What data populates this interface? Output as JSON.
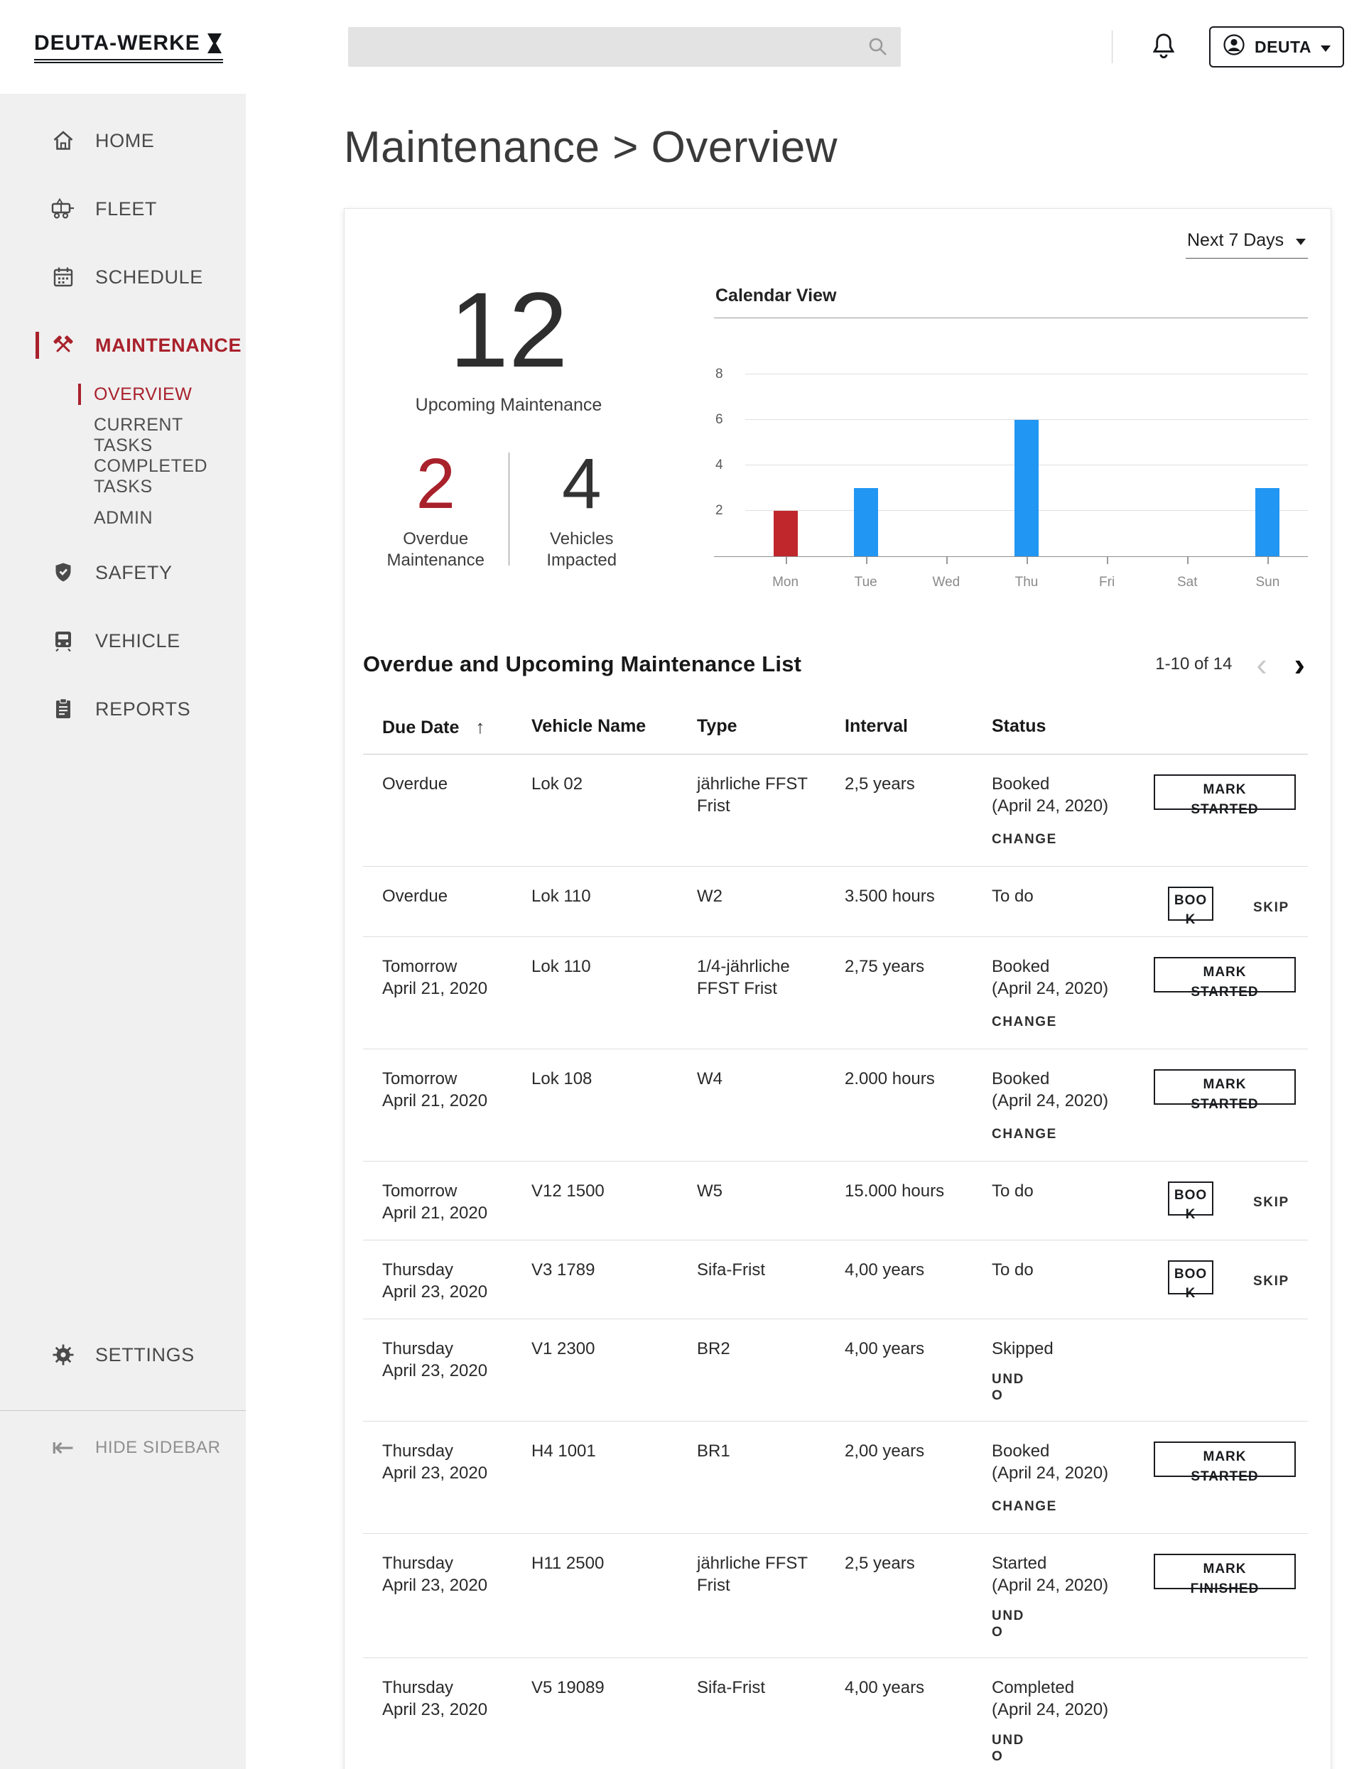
{
  "header": {
    "logo": {
      "text": "DEUTA-WERKE"
    },
    "search": {
      "placeholder": ""
    },
    "user": {
      "label": "DEUTA"
    }
  },
  "sidebar": {
    "items": [
      {
        "id": "home",
        "label": "HOME"
      },
      {
        "id": "fleet",
        "label": "FLEET"
      },
      {
        "id": "schedule",
        "label": "SCHEDULE"
      },
      {
        "id": "maintenance",
        "label": "MAINTENANCE",
        "active": true,
        "subitems": [
          {
            "label": "OVERVIEW",
            "active": true
          },
          {
            "label": "CURRENT TASKS"
          },
          {
            "label": "COMPLETED TASKS"
          },
          {
            "label": "ADMIN"
          }
        ]
      },
      {
        "id": "safety",
        "label": "SAFETY"
      },
      {
        "id": "vehicle",
        "label": "VEHICLE"
      },
      {
        "id": "reports",
        "label": "REPORTS"
      }
    ],
    "settings_label": "SETTINGS",
    "hide_sidebar_label": "HIDE SIDEBAR"
  },
  "page": {
    "title": "Maintenance > Overview"
  },
  "summary": {
    "range_selector_label": "Next 7 Days",
    "upcoming": {
      "value": "12",
      "label": "Upcoming Maintenance"
    },
    "overdue": {
      "value": "2",
      "label": "Overdue Maintenance"
    },
    "vehicles": {
      "value": "4",
      "label": "Vehicles Impacted"
    }
  },
  "chart_data": {
    "type": "bar",
    "title": "Calendar View",
    "categories": [
      "Mon",
      "Tue",
      "Wed",
      "Thu",
      "Fri",
      "Sat",
      "Sun"
    ],
    "values": [
      2,
      3,
      0,
      6,
      0,
      0,
      3
    ],
    "bar_colors": [
      "#c0272d",
      "#2196f3",
      "#2196f3",
      "#2196f3",
      "#2196f3",
      "#2196f3",
      "#2196f3"
    ],
    "yticks": [
      2,
      4,
      6,
      8
    ],
    "ylim": [
      0,
      9
    ],
    "grid": true,
    "xlabel": "",
    "ylabel": "",
    "legend": false
  },
  "list": {
    "title": "Overdue and Upcoming Maintenance List",
    "pagination": {
      "label": "1-10 of 14"
    },
    "columns": [
      "Due Date",
      "Vehicle Name",
      "Type",
      "Interval",
      "Status"
    ],
    "rows": [
      {
        "due_line1": "Overdue",
        "due_line2": "",
        "vehicle": "Lok 02",
        "type": "jährliche FFST Frist",
        "interval": "2,5 years",
        "status_line1": "Booked",
        "status_line2": "(April 24, 2020)",
        "status_link": "CHANGE",
        "action_button": "MARK STARTED",
        "action_link": ""
      },
      {
        "due_line1": "Overdue",
        "due_line2": "",
        "vehicle": "Lok 110",
        "type": "W2",
        "interval": "3.500 hours",
        "status_line1": "To do",
        "status_line2": "",
        "status_link": "",
        "action_button": "BOOK",
        "action_link": "SKIP"
      },
      {
        "due_line1": "Tomorrow",
        "due_line2": "April 21, 2020",
        "vehicle": "Lok 110",
        "type": "1/4-jährliche FFST Frist",
        "interval": "2,75 years",
        "status_line1": "Booked",
        "status_line2": "(April 24, 2020)",
        "status_link": "CHANGE",
        "action_button": "MARK STARTED",
        "action_link": ""
      },
      {
        "due_line1": "Tomorrow",
        "due_line2": "April 21, 2020",
        "vehicle": "Lok 108",
        "type": "W4",
        "interval": "2.000 hours",
        "status_line1": "Booked",
        "status_line2": "(April 24, 2020)",
        "status_link": "CHANGE",
        "action_button": "MARK STARTED",
        "action_link": ""
      },
      {
        "due_line1": "Tomorrow",
        "due_line2": "April 21, 2020",
        "vehicle": "V12 1500",
        "type": "W5",
        "interval": "15.000 hours",
        "status_line1": "To do",
        "status_line2": "",
        "status_link": "",
        "action_button": "BOOK",
        "action_link": "SKIP"
      },
      {
        "due_line1": "Thursday",
        "due_line2": "April 23, 2020",
        "vehicle": "V3 1789",
        "type": "Sifa-Frist",
        "interval": "4,00 years",
        "status_line1": "To do",
        "status_line2": "",
        "status_link": "",
        "action_button": "BOOK",
        "action_link": "SKIP"
      },
      {
        "due_line1": "Thursday",
        "due_line2": "April 23, 2020",
        "vehicle": "V1 2300",
        "type": "BR2",
        "interval": "4,00 years",
        "status_line1": "Skipped",
        "status_line2": "",
        "status_link": "UNDO",
        "action_button": "",
        "action_link": ""
      },
      {
        "due_line1": "Thursday",
        "due_line2": "April 23, 2020",
        "vehicle": "H4 1001",
        "type": "BR1",
        "interval": "2,00 years",
        "status_line1": "Booked",
        "status_line2": "(April 24, 2020)",
        "status_link": "CHANGE",
        "action_button": "MARK STARTED",
        "action_link": ""
      },
      {
        "due_line1": "Thursday",
        "due_line2": "April 23, 2020",
        "vehicle": "H11 2500",
        "type": "jährliche FFST Frist",
        "interval": "2,5 years",
        "status_line1": "Started",
        "status_line2": "(April 24, 2020)",
        "status_link": "UNDO",
        "action_button": "MARK FINISHED",
        "action_link": ""
      },
      {
        "due_line1": "Thursday",
        "due_line2": "April 23, 2020",
        "vehicle": "V5 19089",
        "type": "Sifa-Frist",
        "interval": "4,00 years",
        "status_line1": "Completed",
        "status_line2": "(April 24, 2020)",
        "status_link": "UNDO",
        "action_button": "",
        "action_link": ""
      }
    ]
  },
  "icons": {
    "sort_ascending": "↑",
    "chevron_left": "‹",
    "chevron_right": "›",
    "hide_sidebar": "⇤"
  },
  "colors": {
    "accent_red": "#a8212b",
    "chart_red": "#c0272d",
    "chart_blue": "#2196f3",
    "sidebar_bg": "#f0f0f0",
    "search_bg": "#e3e3e3"
  }
}
